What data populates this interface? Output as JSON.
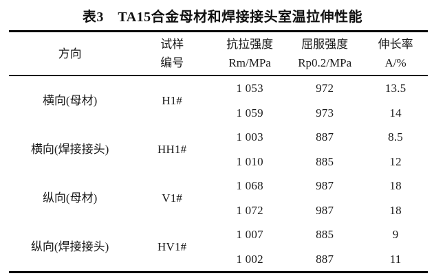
{
  "caption": "表3　TA15合金母材和焊接接头室温拉伸性能",
  "table": {
    "headers": {
      "direction": "方向",
      "sample_line1": "试样",
      "sample_line2": "编号",
      "tensile_line1": "抗拉强度",
      "tensile_line2": "Rm/MPa",
      "yield_line1": "屈服强度",
      "yield_line2": "Rp0.2/MPa",
      "elong_line1": "伸长率",
      "elong_line2": "A/%"
    },
    "groups": [
      {
        "direction": "横向(母材)",
        "sample": "H1#",
        "rows": [
          {
            "rm": "1 053",
            "rp": "972",
            "a": "13.5"
          },
          {
            "rm": "1 059",
            "rp": "973",
            "a": "14"
          }
        ]
      },
      {
        "direction": "横向(焊接接头)",
        "sample": "HH1#",
        "rows": [
          {
            "rm": "1 003",
            "rp": "887",
            "a": "8.5"
          },
          {
            "rm": "1 010",
            "rp": "885",
            "a": "12"
          }
        ]
      },
      {
        "direction": "纵向(母材)",
        "sample": "V1#",
        "rows": [
          {
            "rm": "1 068",
            "rp": "987",
            "a": "18"
          },
          {
            "rm": "1 072",
            "rp": "987",
            "a": "18"
          }
        ]
      },
      {
        "direction": "纵向(焊接接头)",
        "sample": "HV1#",
        "rows": [
          {
            "rm": "1 007",
            "rp": "885",
            "a": "9"
          },
          {
            "rm": "1 002",
            "rp": "887",
            "a": "11"
          }
        ]
      }
    ],
    "colors": {
      "text": "#1a1a1a",
      "rule": "#000000",
      "background": "#ffffff"
    }
  }
}
